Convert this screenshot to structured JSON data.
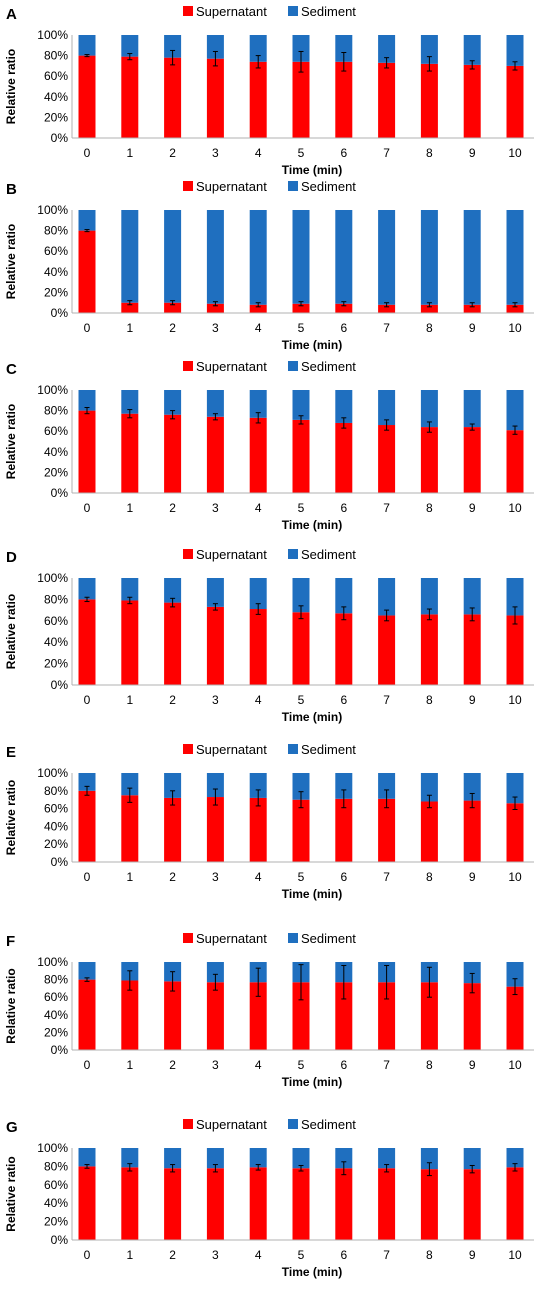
{
  "chart_data": [
    {
      "panel": "A",
      "type": "bar",
      "stacked": true,
      "categories": [
        "0",
        "1",
        "2",
        "3",
        "4",
        "5",
        "6",
        "7",
        "8",
        "9",
        "10"
      ],
      "series": [
        {
          "name": "Supernatant",
          "color": "#ff0000",
          "values": [
            80,
            79,
            78,
            77,
            74,
            74,
            74,
            73,
            72,
            71,
            70
          ],
          "errors": [
            1,
            3,
            7,
            7,
            6,
            10,
            9,
            5,
            7,
            4,
            4
          ]
        },
        {
          "name": "Sediment",
          "color": "#1f6fbf",
          "values": [
            20,
            21,
            22,
            23,
            26,
            26,
            26,
            27,
            28,
            29,
            30
          ]
        }
      ],
      "xlabel": "Time (min)",
      "ylabel": "Relative ratio",
      "yticks": [
        "0%",
        "20%",
        "40%",
        "60%",
        "80%",
        "100%"
      ],
      "ylim": [
        0,
        100
      ],
      "legend": "top-center"
    },
    {
      "panel": "B",
      "type": "bar",
      "stacked": true,
      "categories": [
        "0",
        "1",
        "2",
        "3",
        "4",
        "5",
        "6",
        "7",
        "8",
        "9",
        "10"
      ],
      "series": [
        {
          "name": "Supernatant",
          "color": "#ff0000",
          "values": [
            80,
            10,
            10,
            9,
            8,
            9,
            9,
            8,
            8,
            8,
            8
          ],
          "errors": [
            1,
            2,
            2,
            2,
            2,
            2,
            2,
            2,
            2,
            2,
            2
          ]
        },
        {
          "name": "Sediment",
          "color": "#1f6fbf",
          "values": [
            20,
            90,
            90,
            91,
            92,
            91,
            91,
            92,
            92,
            92,
            92
          ]
        }
      ],
      "xlabel": "Time (min)",
      "ylabel": "Relative ratio",
      "yticks": [
        "0%",
        "20%",
        "40%",
        "60%",
        "80%",
        "100%"
      ],
      "ylim": [
        0,
        100
      ],
      "legend": "top-center"
    },
    {
      "panel": "C",
      "type": "bar",
      "stacked": true,
      "categories": [
        "0",
        "1",
        "2",
        "3",
        "4",
        "5",
        "6",
        "7",
        "8",
        "9",
        "10"
      ],
      "series": [
        {
          "name": "Supernatant",
          "color": "#ff0000",
          "values": [
            80,
            77,
            76,
            74,
            73,
            71,
            68,
            66,
            64,
            64,
            61
          ],
          "errors": [
            3,
            4,
            4,
            3,
            5,
            4,
            5,
            5,
            5,
            3,
            4
          ]
        },
        {
          "name": "Sediment",
          "color": "#1f6fbf",
          "values": [
            20,
            23,
            24,
            26,
            27,
            29,
            32,
            34,
            36,
            36,
            39
          ]
        }
      ],
      "xlabel": "Time (min)",
      "ylabel": "Relative ratio",
      "yticks": [
        "0%",
        "20%",
        "40%",
        "60%",
        "80%",
        "100%"
      ],
      "ylim": [
        0,
        100
      ],
      "legend": "top-center"
    },
    {
      "panel": "D",
      "type": "bar",
      "stacked": true,
      "categories": [
        "0",
        "1",
        "2",
        "3",
        "4",
        "5",
        "6",
        "7",
        "8",
        "9",
        "10"
      ],
      "series": [
        {
          "name": "Supernatant",
          "color": "#ff0000",
          "values": [
            80,
            79,
            77,
            73,
            71,
            68,
            67,
            65,
            66,
            66,
            65
          ],
          "errors": [
            2,
            3,
            4,
            3,
            5,
            6,
            6,
            5,
            5,
            6,
            8
          ]
        },
        {
          "name": "Sediment",
          "color": "#1f6fbf",
          "values": [
            20,
            21,
            23,
            27,
            29,
            32,
            33,
            35,
            34,
            34,
            35
          ]
        }
      ],
      "xlabel": "Time (min)",
      "ylabel": "Relative ratio",
      "yticks": [
        "0%",
        "20%",
        "40%",
        "60%",
        "80%",
        "100%"
      ],
      "ylim": [
        0,
        100
      ],
      "legend": "top-center"
    },
    {
      "panel": "E",
      "type": "bar",
      "stacked": true,
      "categories": [
        "0",
        "1",
        "2",
        "3",
        "4",
        "5",
        "6",
        "7",
        "8",
        "9",
        "10"
      ],
      "series": [
        {
          "name": "Supernatant",
          "color": "#ff0000",
          "values": [
            80,
            75,
            72,
            73,
            72,
            70,
            71,
            71,
            68,
            69,
            66
          ],
          "errors": [
            5,
            8,
            8,
            9,
            9,
            9,
            10,
            10,
            7,
            8,
            7
          ]
        },
        {
          "name": "Sediment",
          "color": "#1f6fbf",
          "values": [
            20,
            25,
            28,
            27,
            28,
            30,
            29,
            29,
            32,
            31,
            34
          ]
        }
      ],
      "xlabel": "Time (min)",
      "ylabel": "Relative ratio",
      "yticks": [
        "0%",
        "20%",
        "40%",
        "60%",
        "80%",
        "100%"
      ],
      "ylim": [
        0,
        100
      ],
      "legend": "top-center"
    },
    {
      "panel": "F",
      "type": "bar",
      "stacked": true,
      "categories": [
        "0",
        "1",
        "2",
        "3",
        "4",
        "5",
        "6",
        "7",
        "8",
        "9",
        "10"
      ],
      "series": [
        {
          "name": "Supernatant",
          "color": "#ff0000",
          "values": [
            80,
            79,
            78,
            77,
            77,
            77,
            77,
            77,
            77,
            76,
            72
          ],
          "errors": [
            2,
            11,
            11,
            9,
            16,
            20,
            19,
            19,
            17,
            11,
            9
          ]
        },
        {
          "name": "Sediment",
          "color": "#1f6fbf",
          "values": [
            20,
            21,
            22,
            23,
            23,
            23,
            23,
            23,
            23,
            24,
            28
          ]
        }
      ],
      "xlabel": "Time (min)",
      "ylabel": "Relative ratio",
      "yticks": [
        "0%",
        "20%",
        "40%",
        "60%",
        "80%",
        "100%"
      ],
      "ylim": [
        0,
        100
      ],
      "legend": "top-center"
    },
    {
      "panel": "G",
      "type": "bar",
      "stacked": true,
      "categories": [
        "0",
        "1",
        "2",
        "3",
        "4",
        "5",
        "6",
        "7",
        "8",
        "9",
        "10"
      ],
      "series": [
        {
          "name": "Supernatant",
          "color": "#ff0000",
          "values": [
            80,
            79,
            78,
            78,
            79,
            78,
            78,
            78,
            77,
            77,
            79
          ],
          "errors": [
            2,
            4,
            4,
            4,
            3,
            3,
            7,
            4,
            7,
            4,
            4
          ]
        },
        {
          "name": "Sediment",
          "color": "#1f6fbf",
          "values": [
            20,
            21,
            22,
            22,
            21,
            22,
            22,
            22,
            23,
            23,
            21
          ]
        }
      ],
      "xlabel": "Time (min)",
      "ylabel": "Relative ratio",
      "yticks": [
        "0%",
        "20%",
        "40%",
        "60%",
        "80%",
        "100%"
      ],
      "ylim": [
        0,
        100
      ],
      "legend": "top-center"
    }
  ]
}
